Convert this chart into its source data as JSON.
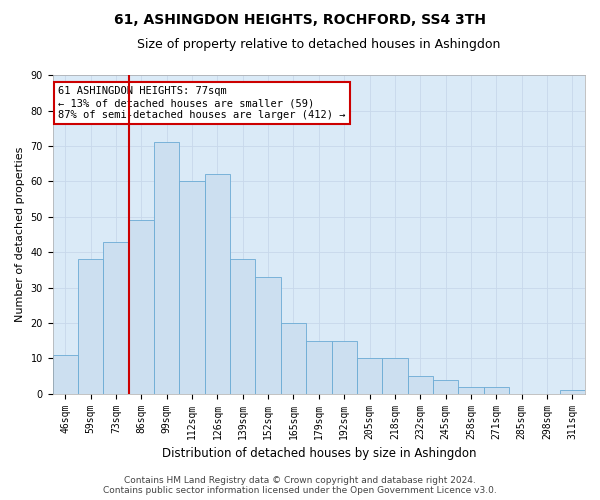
{
  "title": "61, ASHINGDON HEIGHTS, ROCHFORD, SS4 3TH",
  "subtitle": "Size of property relative to detached houses in Ashingdon",
  "xlabel": "Distribution of detached houses by size in Ashingdon",
  "ylabel": "Number of detached properties",
  "categories": [
    "46sqm",
    "59sqm",
    "73sqm",
    "86sqm",
    "99sqm",
    "112sqm",
    "126sqm",
    "139sqm",
    "152sqm",
    "165sqm",
    "179sqm",
    "192sqm",
    "205sqm",
    "218sqm",
    "232sqm",
    "245sqm",
    "258sqm",
    "271sqm",
    "285sqm",
    "298sqm",
    "311sqm"
  ],
  "values": [
    11,
    38,
    43,
    49,
    71,
    60,
    62,
    38,
    33,
    20,
    15,
    15,
    10,
    10,
    5,
    4,
    2,
    2,
    0,
    0,
    1
  ],
  "bar_color": "#ccdff0",
  "bar_edge_color": "#6aaad4",
  "vline_x_index": 2,
  "vline_color": "#cc0000",
  "annotation_line1": "61 ASHINGDON HEIGHTS: 77sqm",
  "annotation_line2": "← 13% of detached houses are smaller (59)",
  "annotation_line3": "87% of semi-detached houses are larger (412) →",
  "annotation_box_color": "#cc0000",
  "annotation_box_bg": "#ffffff",
  "ylim": [
    0,
    90
  ],
  "yticks": [
    0,
    10,
    20,
    30,
    40,
    50,
    60,
    70,
    80,
    90
  ],
  "grid_color": "#c8d8ea",
  "bg_color": "#daeaf7",
  "footer_line1": "Contains HM Land Registry data © Crown copyright and database right 2024.",
  "footer_line2": "Contains public sector information licensed under the Open Government Licence v3.0.",
  "title_fontsize": 10,
  "subtitle_fontsize": 9,
  "xlabel_fontsize": 8.5,
  "ylabel_fontsize": 8,
  "tick_fontsize": 7,
  "annot_fontsize": 7.5,
  "footer_fontsize": 6.5
}
